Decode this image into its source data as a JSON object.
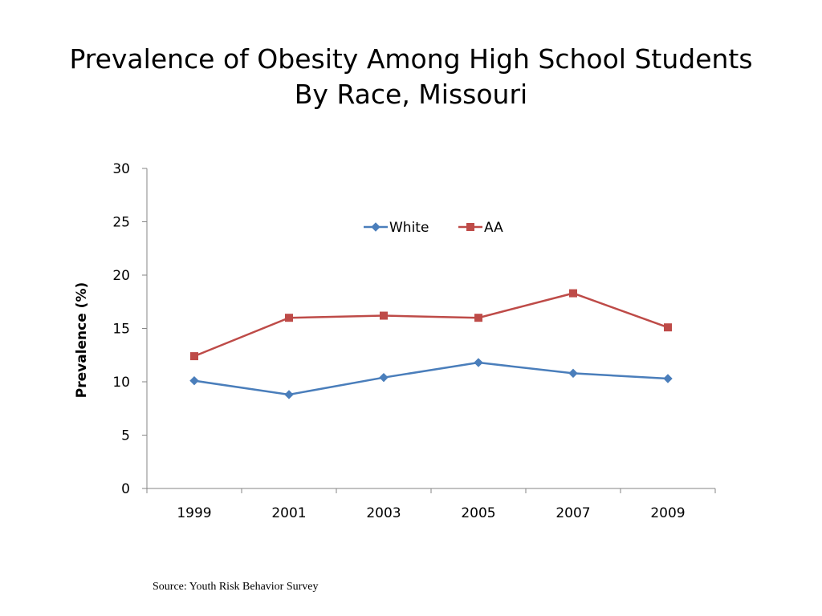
{
  "title": {
    "line1": "Prevalence of Obesity Among High School Students",
    "line2": "By Race, Missouri"
  },
  "source": "Source: Youth Risk Behavior Survey",
  "chart_data": {
    "type": "line",
    "categories": [
      "1999",
      "2001",
      "2003",
      "2005",
      "2007",
      "2009"
    ],
    "series": [
      {
        "name": "White",
        "values": [
          10.1,
          8.8,
          10.4,
          11.8,
          10.8,
          10.3
        ],
        "color": "#4a7ebb",
        "marker": "diamond"
      },
      {
        "name": "AA",
        "values": [
          12.4,
          16.0,
          16.2,
          16.0,
          18.3,
          15.1
        ],
        "color": "#be4b48",
        "marker": "square"
      }
    ],
    "ylabel": "Prevalence (%)",
    "xlabel": "",
    "ylim": [
      0,
      30
    ],
    "yticks": [
      0,
      5,
      10,
      15,
      20,
      25,
      30
    ],
    "grid": false,
    "legend": "top-center"
  }
}
